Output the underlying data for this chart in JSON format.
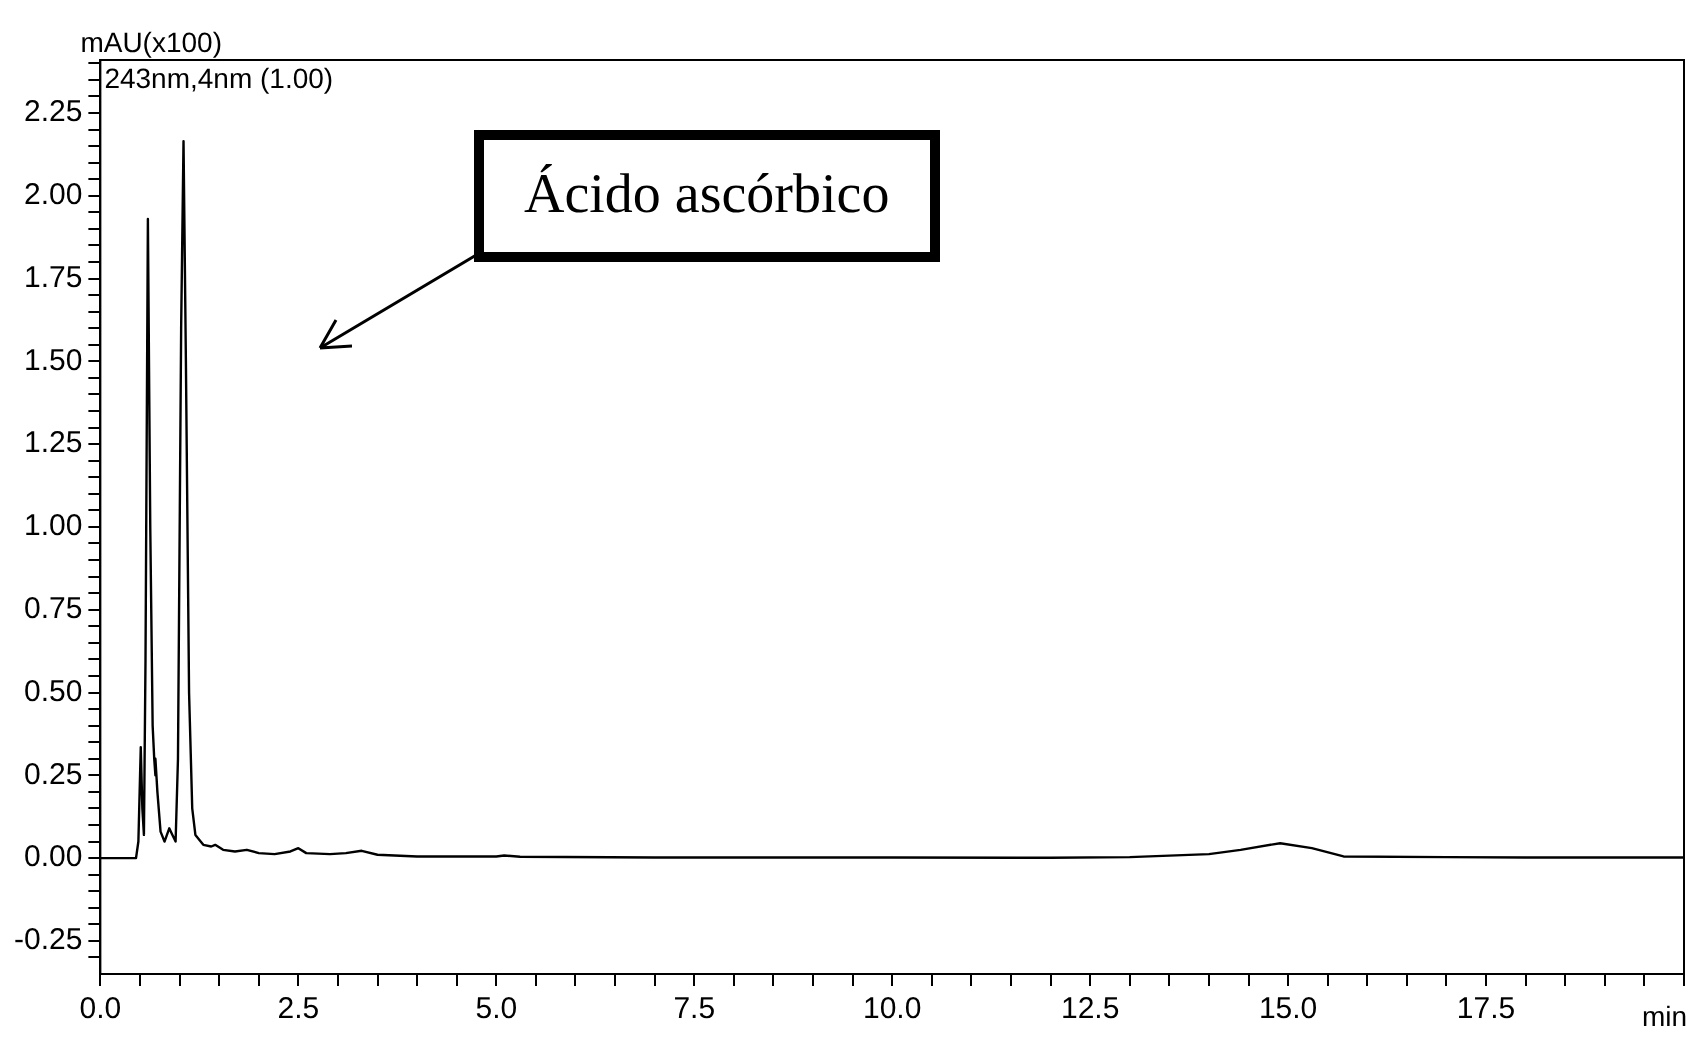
{
  "chart_data": {
    "type": "line",
    "ylabel": "mAU(x100)",
    "xlabel": "min",
    "annotations": [
      "243nm,4nm (1.00)",
      "Ácido ascórbico"
    ],
    "x": [
      0,
      0.45,
      0.48,
      0.51,
      0.53,
      0.55,
      0.57,
      0.6,
      0.63,
      0.66,
      0.68,
      0.69,
      0.7,
      0.72,
      0.76,
      0.81,
      0.87,
      0.91,
      0.95,
      0.98,
      1.02,
      1.05,
      1.08,
      1.12,
      1.16,
      1.2,
      1.3,
      1.4,
      1.45,
      1.55,
      1.7,
      1.85,
      2.0,
      2.2,
      2.4,
      2.5,
      2.6,
      2.9,
      3.1,
      3.3,
      3.5,
      4.0,
      5.0,
      5.1,
      5.3,
      7,
      10,
      12,
      13,
      14,
      14.4,
      14.9,
      15.3,
      15.7,
      17,
      18,
      20
    ],
    "series": [
      {
        "color": "#000000",
        "values": [
          0,
          0,
          0.05,
          0.335,
          0.15,
          0.07,
          0.6,
          1.93,
          1.0,
          0.4,
          0.3,
          0.25,
          0.3,
          0.2,
          0.08,
          0.05,
          0.09,
          0.07,
          0.05,
          0.3,
          1.6,
          2.165,
          1.5,
          0.5,
          0.15,
          0.07,
          0.04,
          0.035,
          0.04,
          0.025,
          0.02,
          0.025,
          0.015,
          0.012,
          0.02,
          0.03,
          0.015,
          0.012,
          0.015,
          0.022,
          0.01,
          0.005,
          0.005,
          0.008,
          0.004,
          0.002,
          0.002,
          0.001,
          0.003,
          0.012,
          0.025,
          0.045,
          0.03,
          0.005,
          0.003,
          0.002,
          0.002
        ]
      }
    ],
    "xlim": [
      0,
      20
    ],
    "xticks": [
      {
        "value": 0,
        "label": "0.0"
      },
      {
        "value": 0.5,
        "label": null
      },
      {
        "value": 1,
        "label": null
      },
      {
        "value": 1.5,
        "label": null
      },
      {
        "value": 2,
        "label": null
      },
      {
        "value": 2.5,
        "label": "2.5"
      },
      {
        "value": 3,
        "label": null
      },
      {
        "value": 3.5,
        "label": null
      },
      {
        "value": 4,
        "label": null
      },
      {
        "value": 4.5,
        "label": null
      },
      {
        "value": 5,
        "label": "5.0"
      },
      {
        "value": 5.5,
        "label": null
      },
      {
        "value": 6,
        "label": null
      },
      {
        "value": 6.5,
        "label": null
      },
      {
        "value": 7,
        "label": null
      },
      {
        "value": 7.5,
        "label": "7.5"
      },
      {
        "value": 8,
        "label": null
      },
      {
        "value": 8.5,
        "label": null
      },
      {
        "value": 9,
        "label": null
      },
      {
        "value": 9.5,
        "label": null
      },
      {
        "value": 10,
        "label": "10.0"
      },
      {
        "value": 10.5,
        "label": null
      },
      {
        "value": 11,
        "label": null
      },
      {
        "value": 11.5,
        "label": null
      },
      {
        "value": 12,
        "label": null
      },
      {
        "value": 12.5,
        "label": "12.5"
      },
      {
        "value": 13,
        "label": null
      },
      {
        "value": 13.5,
        "label": null
      },
      {
        "value": 14,
        "label": null
      },
      {
        "value": 14.5,
        "label": null
      },
      {
        "value": 15,
        "label": "15.0"
      },
      {
        "value": 15.5,
        "label": null
      },
      {
        "value": 16,
        "label": null
      },
      {
        "value": 16.5,
        "label": null
      },
      {
        "value": 17,
        "label": null
      },
      {
        "value": 17.5,
        "label": "17.5"
      },
      {
        "value": 18,
        "label": null
      },
      {
        "value": 18.5,
        "label": null
      },
      {
        "value": 19,
        "label": null
      },
      {
        "value": 19.5,
        "label": null
      },
      {
        "value": 20,
        "label": null
      }
    ],
    "ylim": [
      -0.35,
      2.41
    ],
    "yticks": [
      {
        "value": -0.3,
        "label": null
      },
      {
        "value": -0.25,
        "label": "-0.25"
      },
      {
        "value": -0.2,
        "label": null
      },
      {
        "value": -0.15,
        "label": null
      },
      {
        "value": -0.1,
        "label": null
      },
      {
        "value": -0.05,
        "label": null
      },
      {
        "value": 0,
        "label": "0.00"
      },
      {
        "value": 0.05,
        "label": null
      },
      {
        "value": 0.1,
        "label": null
      },
      {
        "value": 0.15,
        "label": null
      },
      {
        "value": 0.2,
        "label": null
      },
      {
        "value": 0.25,
        "label": "0.25"
      },
      {
        "value": 0.3,
        "label": null
      },
      {
        "value": 0.35,
        "label": null
      },
      {
        "value": 0.4,
        "label": null
      },
      {
        "value": 0.45,
        "label": null
      },
      {
        "value": 0.5,
        "label": "0.50"
      },
      {
        "value": 0.55,
        "label": null
      },
      {
        "value": 0.6,
        "label": null
      },
      {
        "value": 0.65,
        "label": null
      },
      {
        "value": 0.7,
        "label": null
      },
      {
        "value": 0.75,
        "label": "0.75"
      },
      {
        "value": 0.8,
        "label": null
      },
      {
        "value": 0.85,
        "label": null
      },
      {
        "value": 0.9,
        "label": null
      },
      {
        "value": 0.95,
        "label": null
      },
      {
        "value": 1,
        "label": "1.00"
      },
      {
        "value": 1.05,
        "label": null
      },
      {
        "value": 1.1,
        "label": null
      },
      {
        "value": 1.15,
        "label": null
      },
      {
        "value": 1.2,
        "label": null
      },
      {
        "value": 1.25,
        "label": "1.25"
      },
      {
        "value": 1.3,
        "label": null
      },
      {
        "value": 1.35,
        "label": null
      },
      {
        "value": 1.4,
        "label": null
      },
      {
        "value": 1.45,
        "label": null
      },
      {
        "value": 1.5,
        "label": "1.50"
      },
      {
        "value": 1.55,
        "label": null
      },
      {
        "value": 1.6,
        "label": null
      },
      {
        "value": 1.65,
        "label": null
      },
      {
        "value": 1.7,
        "label": null
      },
      {
        "value": 1.75,
        "label": "1.75"
      },
      {
        "value": 1.8,
        "label": null
      },
      {
        "value": 1.85,
        "label": null
      },
      {
        "value": 1.9,
        "label": null
      },
      {
        "value": 1.95,
        "label": null
      },
      {
        "value": 2,
        "label": "2.00"
      },
      {
        "value": 2.05,
        "label": null
      },
      {
        "value": 2.1,
        "label": null
      },
      {
        "value": 2.15,
        "label": null
      },
      {
        "value": 2.2,
        "label": null
      },
      {
        "value": 2.25,
        "label": "2.25"
      },
      {
        "value": 2.3,
        "label": null
      },
      {
        "value": 2.35,
        "label": null
      },
      {
        "value": 2.4,
        "label": null
      }
    ],
    "grid": false,
    "legend": false,
    "marker": "none",
    "line_style": "solid"
  }
}
